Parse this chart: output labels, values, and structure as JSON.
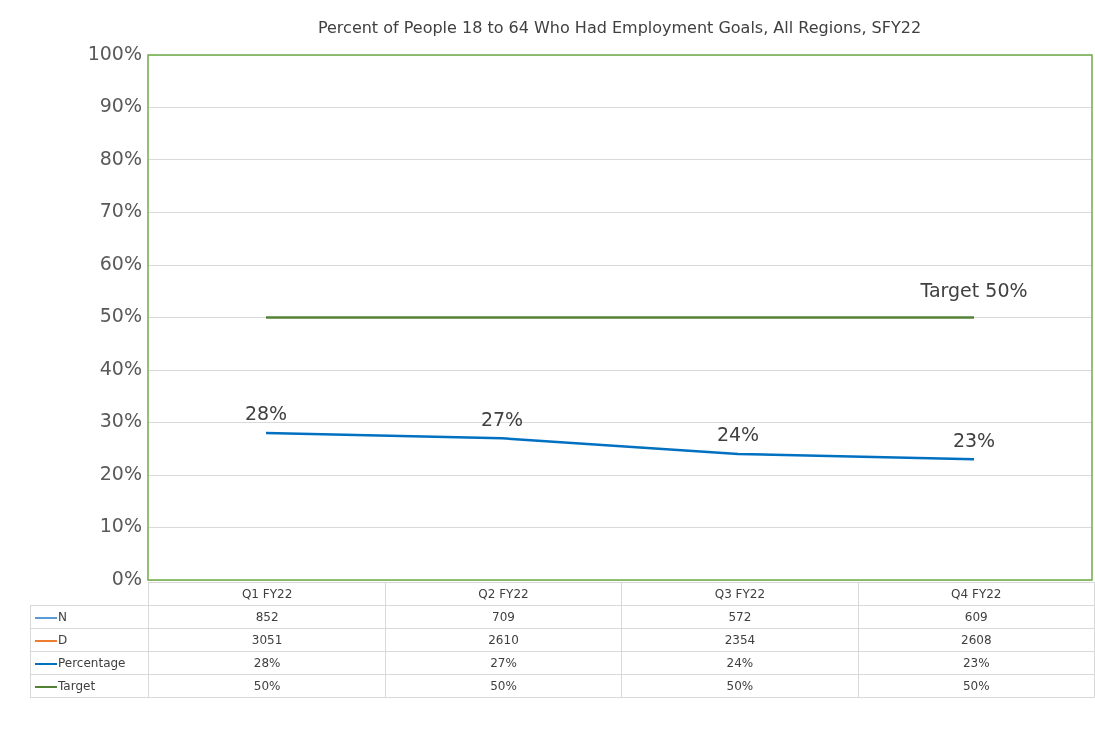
{
  "chart_data": {
    "type": "line",
    "title": "Percent of People 18 to 64 Who Had Employment Goals, All Regions, SFY22",
    "categories": [
      "Q1 FY22",
      "Q2 FY22",
      "Q3 FY22",
      "Q4 FY22"
    ],
    "series": [
      {
        "name": "N",
        "color": "#5b9bd5",
        "values": [
          null,
          null,
          null,
          null
        ],
        "value_labels": [
          "852",
          "709",
          "572",
          "609"
        ]
      },
      {
        "name": "D",
        "color": "#ed7d31",
        "values": [
          null,
          null,
          null,
          null
        ],
        "value_labels": [
          "3051",
          "2610",
          "2354",
          "2608"
        ]
      },
      {
        "name": "Percentage",
        "color": "#0070c0",
        "values": [
          28,
          27,
          24,
          23
        ],
        "value_labels": [
          "28%",
          "27%",
          "24%",
          "23%"
        ]
      },
      {
        "name": "Target",
        "color": "#548235",
        "values": [
          50,
          50,
          50,
          50
        ],
        "value_labels": [
          "50%",
          "50%",
          "50%",
          "50%"
        ]
      }
    ],
    "ylim": [
      0,
      100
    ],
    "yticks": [
      {
        "value": 0,
        "label": "0%"
      },
      {
        "value": 10,
        "label": "10%"
      },
      {
        "value": 20,
        "label": "20%"
      },
      {
        "value": 30,
        "label": "30%"
      },
      {
        "value": 40,
        "label": "40%"
      },
      {
        "value": 50,
        "label": "50%"
      },
      {
        "value": 60,
        "label": "60%"
      },
      {
        "value": 70,
        "label": "70%"
      },
      {
        "value": 80,
        "label": "80%"
      },
      {
        "value": 90,
        "label": "90%"
      },
      {
        "value": 100,
        "label": "100%"
      }
    ],
    "annotations": [
      {
        "text": "Target 50%",
        "x": "Q4 FY22",
        "y": 50
      }
    ],
    "grid": "y",
    "legend": "bottom",
    "marker": "none",
    "line_style": "solid",
    "data_labels": false
  }
}
